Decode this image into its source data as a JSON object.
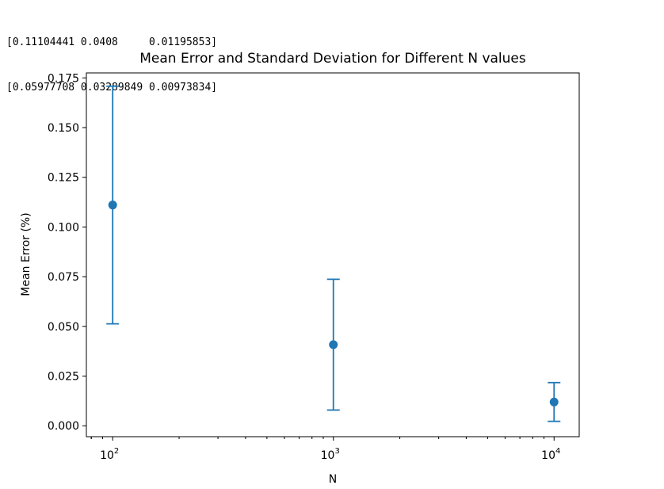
{
  "console": {
    "lines": [
      "[0.11104441 0.0408     0.01195853]",
      "[0.05977708 0.03289849 0.00973834]"
    ]
  },
  "chart_data": {
    "type": "scatter",
    "title": "Mean Error and Standard Deviation for Different N values",
    "xlabel": "N",
    "ylabel": "Mean Error (%)",
    "xscale": "log",
    "x": [
      100,
      1000,
      10000
    ],
    "y": [
      0.11104441,
      0.0408,
      0.01195853
    ],
    "yerr": [
      0.05977708,
      0.03289849,
      0.00973834
    ],
    "xlim": [
      76,
      13000
    ],
    "ylim": [
      -0.0055,
      0.1775
    ],
    "yticks": [
      0.0,
      0.025,
      0.05,
      0.075,
      0.1,
      0.125,
      0.15,
      0.175
    ],
    "ytick_labels": [
      "0.000",
      "0.025",
      "0.050",
      "0.075",
      "0.100",
      "0.125",
      "0.150",
      "0.175"
    ],
    "xtick_labels": [
      {
        "base": "10",
        "exp": "2"
      },
      {
        "base": "10",
        "exp": "3"
      },
      {
        "base": "10",
        "exp": "4"
      }
    ],
    "grid": false,
    "color": "#1f77b4"
  }
}
